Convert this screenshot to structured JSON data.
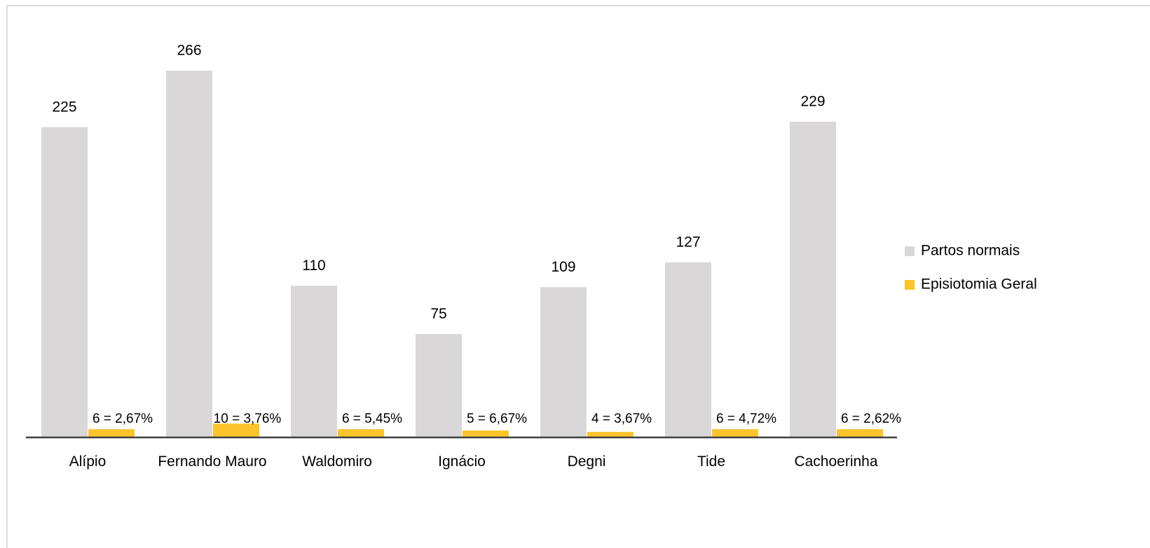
{
  "chart_data": {
    "type": "bar",
    "categories": [
      "Alípio",
      "Fernando Mauro",
      "Waldomiro",
      "Ignácio",
      "Degni",
      "Tide",
      "Cachoerinha"
    ],
    "series": [
      {
        "name": "Partos normais",
        "color": "#d9d7d8",
        "values": [
          225,
          266,
          110,
          75,
          109,
          127,
          229
        ]
      },
      {
        "name": "Episiotomia Geral",
        "color": "#fcc42b",
        "values": [
          6,
          10,
          6,
          5,
          4,
          6,
          6
        ],
        "value_labels": [
          "6 = 2,67%",
          "10 = 3,76%",
          "6 = 5,45%",
          "5 = 6,67%",
          "4 = 3,67%",
          "6 = 4,72%",
          "6 = 2,62%"
        ]
      }
    ],
    "legend": "right"
  }
}
